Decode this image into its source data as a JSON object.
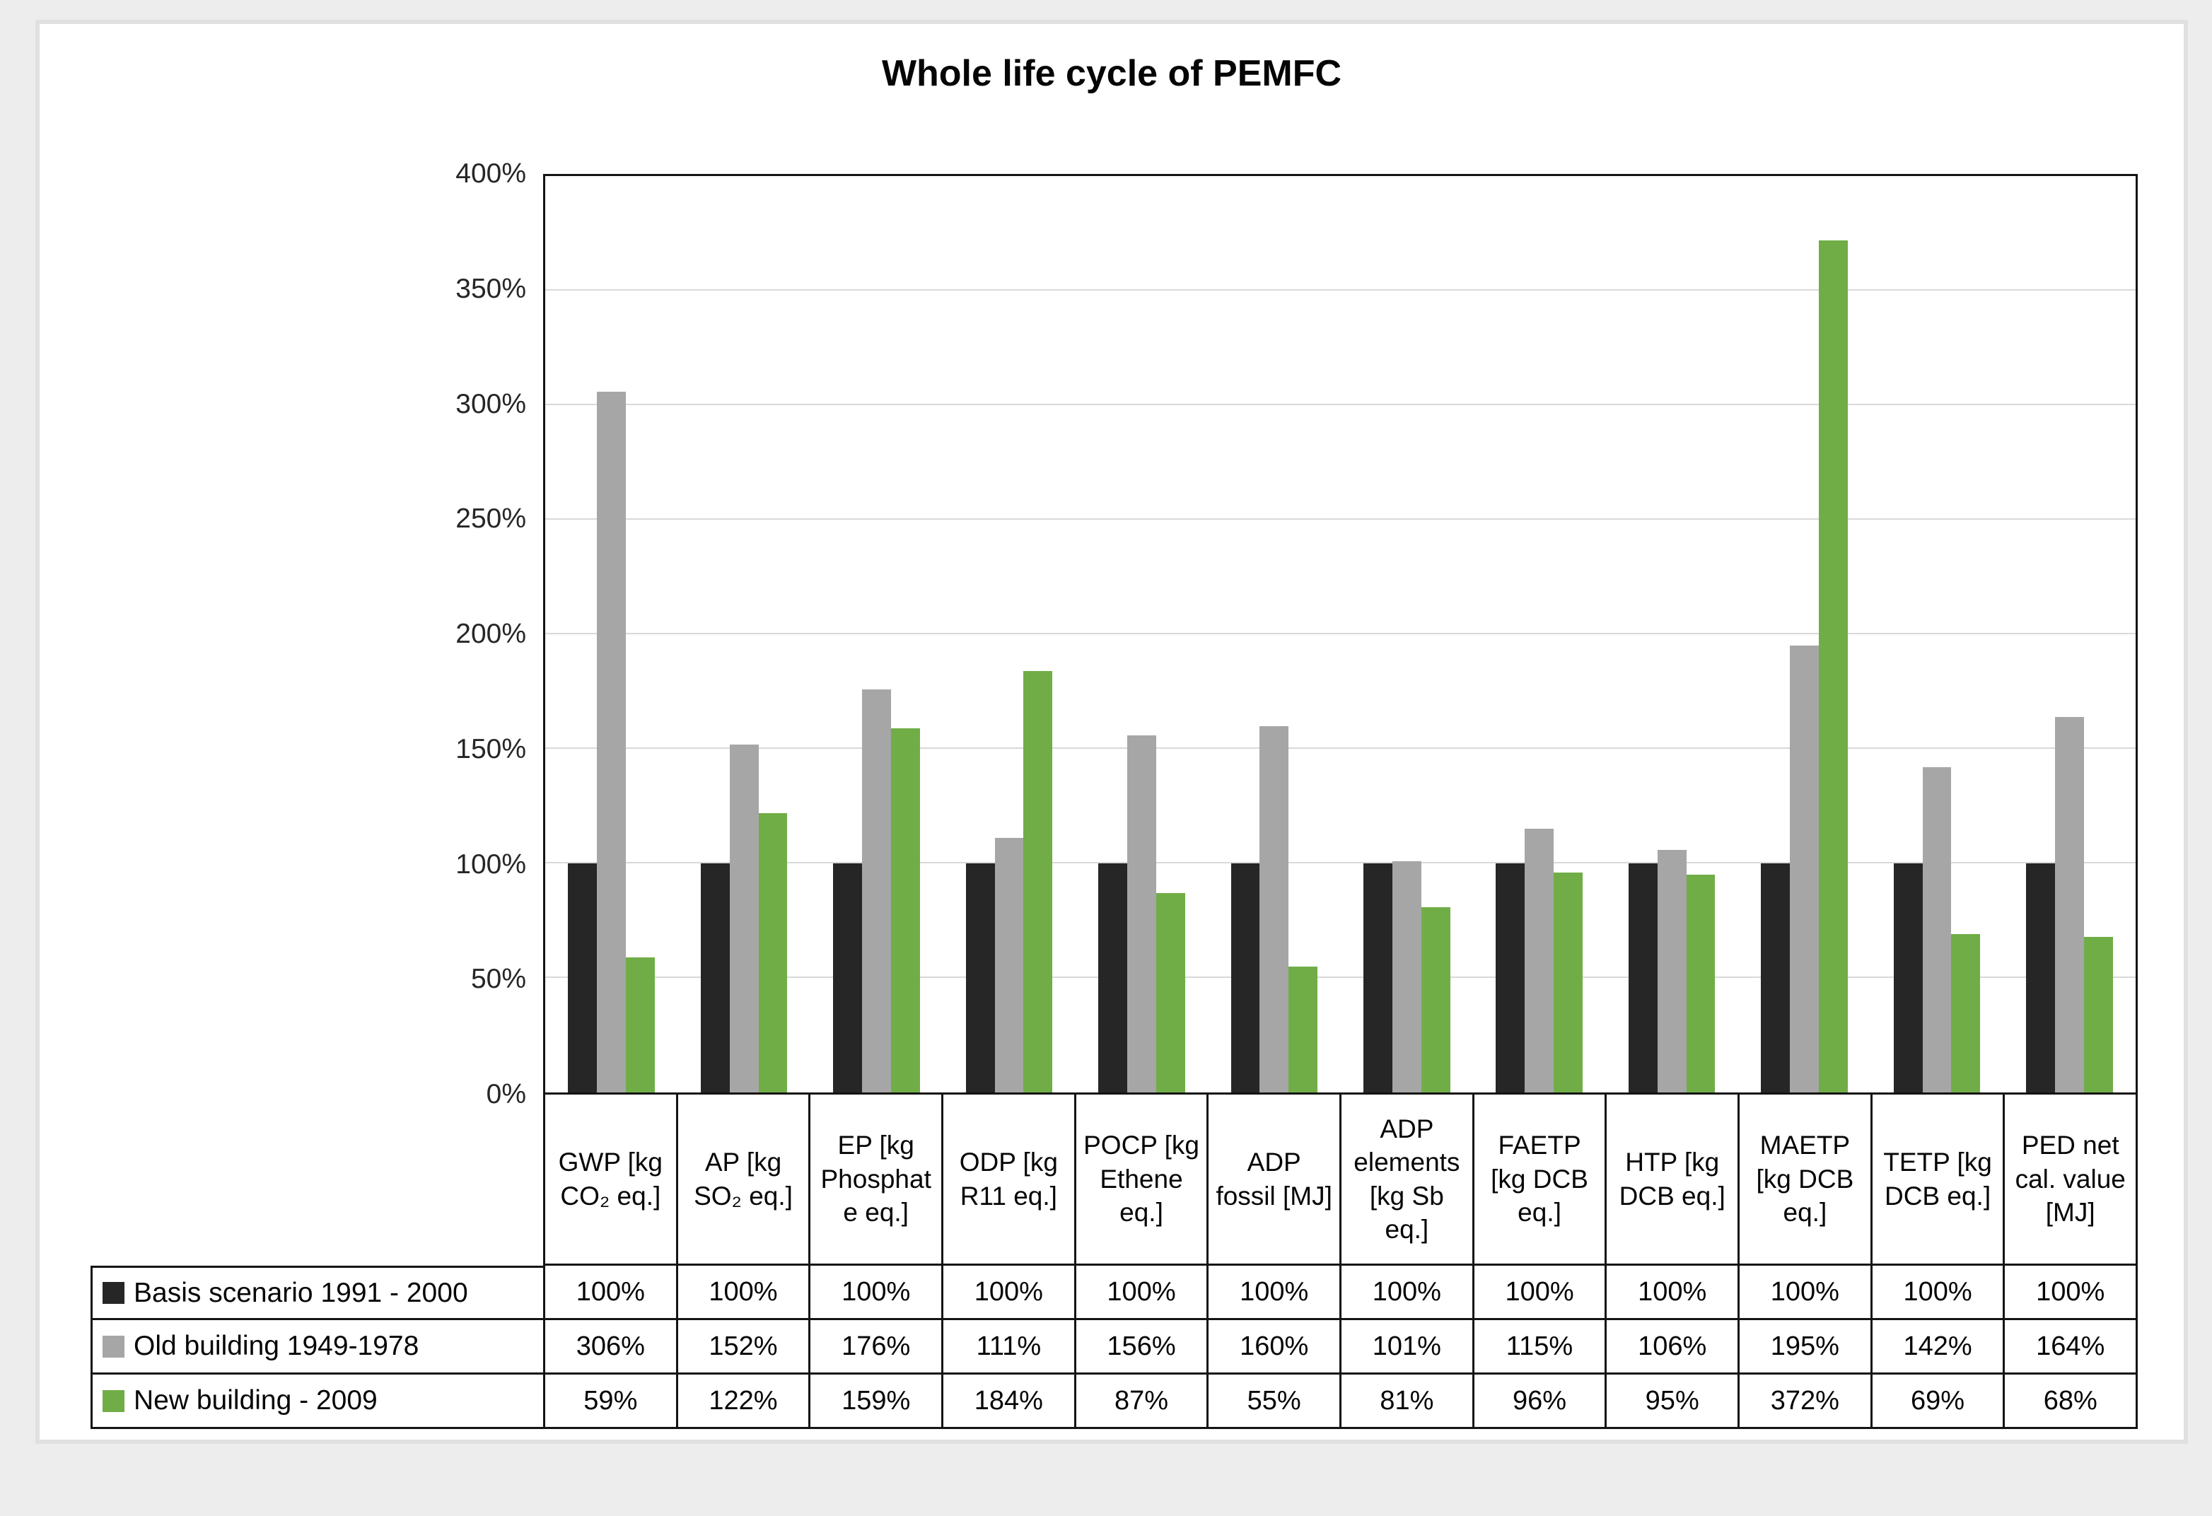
{
  "page": {
    "title": "Whole life cycle of PEMFC"
  },
  "colors": {
    "series_basis": "#262626",
    "series_old": "#a6a6a6",
    "series_new": "#70ad47",
    "gridline": "#d9d9d9",
    "plot_border": "#141414",
    "sheet_frame": "#e0e0e0"
  },
  "chart_data": {
    "type": "bar",
    "title": "Whole life cycle of PEMFC",
    "xlabel": "",
    "ylabel": "",
    "ylim": [
      0,
      400
    ],
    "ytick_step": 50,
    "ytick_labels": [
      "0%",
      "50%",
      "100%",
      "150%",
      "200%",
      "250%",
      "300%",
      "350%",
      "400%"
    ],
    "grid": true,
    "legend_position": "data-table-left",
    "value_suffix": "%",
    "categories": [
      "GWP [kg CO₂ eq.]",
      "AP  [kg SO₂ eq.]",
      "EP [kg Phosphate eq.]",
      "ODP [kg R11 eq.]",
      "POCP [kg Ethene eq.]",
      "ADP fossil [MJ]",
      "ADP elements  [kg Sb eq.]",
      "FAETP [kg DCB eq.]",
      "HTP [kg DCB eq.]",
      "MAETP [kg DCB eq.]",
      "TETP [kg DCB eq.]",
      "PED net cal. value [MJ]"
    ],
    "series": [
      {
        "name": "Basis scenario 1991 - 2000",
        "color": "#262626",
        "values": [
          100,
          100,
          100,
          100,
          100,
          100,
          100,
          100,
          100,
          100,
          100,
          100
        ]
      },
      {
        "name": "Old building 1949-1978",
        "color": "#a6a6a6",
        "values": [
          306,
          152,
          176,
          111,
          156,
          160,
          101,
          115,
          106,
          195,
          142,
          164
        ]
      },
      {
        "name": "New building - 2009",
        "color": "#70ad47",
        "values": [
          59,
          122,
          159,
          184,
          87,
          55,
          81,
          96,
          95,
          372,
          69,
          68
        ]
      }
    ]
  }
}
